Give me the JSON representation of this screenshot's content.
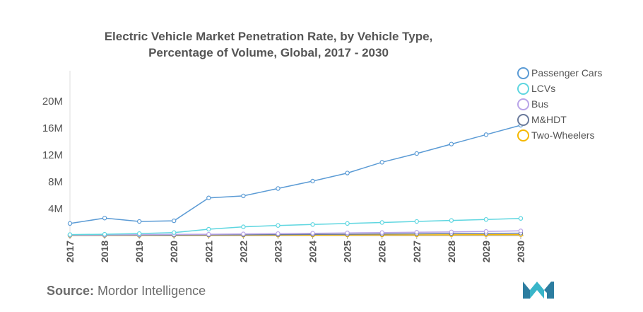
{
  "chart_data": {
    "type": "line",
    "title_lines": [
      "Electric Vehicle Market Penetration Rate, by Vehicle Type,",
      "Percentage of Volume, Global, 2017 - 2030"
    ],
    "x": [
      "2017",
      "2018",
      "2019",
      "2020",
      "2021",
      "2022",
      "2023",
      "2024",
      "2025",
      "2026",
      "2027",
      "2028",
      "2029",
      "2030"
    ],
    "y_ticks": [
      {
        "value": 4,
        "label": "4M"
      },
      {
        "value": 8,
        "label": "8M"
      },
      {
        "value": 12,
        "label": "12M"
      },
      {
        "value": 16,
        "label": "16M"
      },
      {
        "value": 20,
        "label": "20M"
      }
    ],
    "ylim": [
      0,
      24.5
    ],
    "grid": false,
    "legend_position": "right",
    "series": [
      {
        "name": "Passenger Cars",
        "color": "#5b9bd5",
        "values": [
          1.8,
          2.6,
          2.1,
          2.2,
          5.6,
          5.9,
          7.0,
          8.1,
          9.3,
          10.9,
          12.2,
          13.6,
          15.0,
          16.4
        ]
      },
      {
        "name": "LCVs",
        "color": "#5ed6e0",
        "values": [
          0.15,
          0.2,
          0.3,
          0.45,
          0.95,
          1.3,
          1.5,
          1.65,
          1.8,
          1.95,
          2.1,
          2.25,
          2.4,
          2.55
        ]
      },
      {
        "name": "Bus",
        "color": "#b9a4e8",
        "values": [
          0.1,
          0.12,
          0.15,
          0.18,
          0.2,
          0.25,
          0.3,
          0.35,
          0.4,
          0.45,
          0.5,
          0.55,
          0.62,
          0.7
        ]
      },
      {
        "name": "M&HDT",
        "color": "#6a7a9b",
        "values": [
          0.05,
          0.06,
          0.07,
          0.08,
          0.1,
          0.12,
          0.15,
          0.18,
          0.2,
          0.23,
          0.26,
          0.3,
          0.33,
          0.36
        ]
      },
      {
        "name": "Two-Wheelers",
        "color": "#f5b800",
        "values": [
          0.02,
          0.03,
          0.03,
          0.04,
          0.05,
          0.06,
          0.07,
          0.08,
          0.09,
          0.1,
          0.11,
          0.12,
          0.13,
          0.14
        ]
      }
    ]
  },
  "source": {
    "label": "Source:",
    "text": "Mordor Intelligence"
  }
}
